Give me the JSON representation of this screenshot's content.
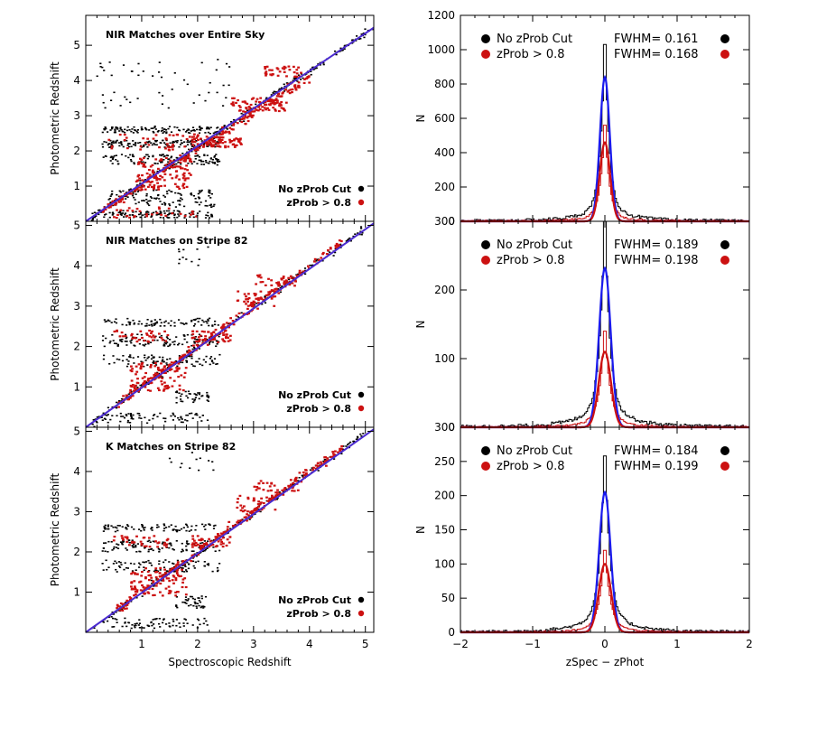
{
  "chart_data": [
    {
      "type": "scatter",
      "title": "NIR Matches over Entire Sky",
      "xlabel": "",
      "ylabel": "Photometric Redshift",
      "xlim": [
        0,
        5.15
      ],
      "ylim": [
        0,
        5.85
      ],
      "xticks": [
        "1",
        "2",
        "3",
        "4",
        "5"
      ],
      "xtick_values": [
        1,
        2,
        3,
        4,
        5
      ],
      "show_xtick_labels": false,
      "yticks": [
        "1",
        "2",
        "3",
        "4",
        "5"
      ],
      "ytick_values": [
        1,
        2,
        3,
        4,
        5
      ],
      "legend": {
        "position": "bottom-right",
        "entries": [
          {
            "label": "No zProb Cut",
            "color": "#000000"
          },
          {
            "label": "zProb > 0.8",
            "color": "#cc1111"
          }
        ]
      },
      "fit_line": {
        "from": [
          0,
          0
        ],
        "to": [
          5.15,
          5.5
        ],
        "color": "#4b2bd0"
      },
      "series": [
        {
          "name": "No zProb Cut",
          "color": "#000000",
          "clusters": [
            {
              "x": [
                0.1,
                5.15
              ],
              "y": [
                0.1,
                5.5
              ],
              "spread": 0.12,
              "n": 260,
              "diag": true
            },
            {
              "x": [
                0.3,
                2.4
              ],
              "y": [
                2.5,
                2.7
              ],
              "n": 110
            },
            {
              "x": [
                0.3,
                2.4
              ],
              "y": [
                2.1,
                2.3
              ],
              "n": 130
            },
            {
              "x": [
                0.3,
                2.4
              ],
              "y": [
                1.6,
                1.9
              ],
              "n": 120
            },
            {
              "x": [
                0.4,
                2.3
              ],
              "y": [
                0.4,
                0.9
              ],
              "n": 120
            },
            {
              "x": [
                0.3,
                2.3
              ],
              "y": [
                0.1,
                0.3
              ],
              "n": 100
            },
            {
              "x": [
                0.2,
                2.7
              ],
              "y": [
                3.2,
                4.6
              ],
              "n": 50
            }
          ]
        },
        {
          "name": "zProb > 0.8",
          "color": "#cc1111",
          "clusters": [
            {
              "x": [
                0.3,
                4.0
              ],
              "y": [
                0.3,
                4.1
              ],
              "spread": 0.15,
              "n": 220,
              "diag": true
            },
            {
              "x": [
                0.9,
                1.9
              ],
              "y": [
                0.9,
                1.8
              ],
              "n": 110
            },
            {
              "x": [
                1.9,
                2.8
              ],
              "y": [
                2.1,
                2.4
              ],
              "n": 70
            },
            {
              "x": [
                2.6,
                3.6
              ],
              "y": [
                3.1,
                3.5
              ],
              "n": 70
            },
            {
              "x": [
                3.2,
                3.9
              ],
              "y": [
                4.1,
                4.4
              ],
              "n": 35
            },
            {
              "x": [
                0.4,
                2.2
              ],
              "y": [
                2.0,
                2.5
              ],
              "n": 45
            },
            {
              "x": [
                0.5,
                2.0
              ],
              "y": [
                0.1,
                0.4
              ],
              "n": 30
            }
          ]
        }
      ]
    },
    {
      "type": "scatter",
      "title": "NIR Matches on Stripe 82",
      "xlabel": "",
      "ylabel": "Photometric Redshift",
      "xlim": [
        0,
        5.15
      ],
      "ylim": [
        0,
        5.1
      ],
      "xticks": [
        "1",
        "2",
        "3",
        "4",
        "5"
      ],
      "xtick_values": [
        1,
        2,
        3,
        4,
        5
      ],
      "show_xtick_labels": false,
      "yticks": [
        "1",
        "2",
        "3",
        "4",
        "5"
      ],
      "ytick_values": [
        1,
        2,
        3,
        4,
        5
      ],
      "legend": {
        "position": "bottom-right",
        "entries": [
          {
            "label": "No zProb Cut",
            "color": "#000000"
          },
          {
            "label": "zProb > 0.8",
            "color": "#cc1111"
          }
        ]
      },
      "fit_line": {
        "from": [
          0,
          0
        ],
        "to": [
          5.15,
          5.05
        ],
        "color": "#4b2bd0"
      },
      "series": [
        {
          "name": "No zProb Cut",
          "color": "#000000",
          "clusters": [
            {
              "x": [
                0.1,
                5.0
              ],
              "y": [
                0.1,
                4.95
              ],
              "spread": 0.1,
              "n": 220,
              "diag": true
            },
            {
              "x": [
                0.3,
                2.4
              ],
              "y": [
                2.5,
                2.7
              ],
              "n": 80
            },
            {
              "x": [
                0.3,
                2.4
              ],
              "y": [
                2.0,
                2.3
              ],
              "n": 110
            },
            {
              "x": [
                0.3,
                2.4
              ],
              "y": [
                1.5,
                1.8
              ],
              "n": 90
            },
            {
              "x": [
                1.6,
                2.2
              ],
              "y": [
                0.6,
                0.9
              ],
              "n": 40
            },
            {
              "x": [
                0.3,
                2.2
              ],
              "y": [
                0.1,
                0.35
              ],
              "n": 70
            },
            {
              "x": [
                1.5,
                2.3
              ],
              "y": [
                4.0,
                4.5
              ],
              "n": 12
            }
          ]
        },
        {
          "name": "zProb > 0.8",
          "color": "#cc1111",
          "clusters": [
            {
              "x": [
                0.5,
                4.6
              ],
              "y": [
                0.5,
                4.6
              ],
              "spread": 0.12,
              "n": 200,
              "diag": true
            },
            {
              "x": [
                0.8,
                1.8
              ],
              "y": [
                0.9,
                1.6
              ],
              "n": 100
            },
            {
              "x": [
                0.5,
                1.5
              ],
              "y": [
                2.1,
                2.4
              ],
              "n": 35
            },
            {
              "x": [
                1.9,
                2.6
              ],
              "y": [
                2.1,
                2.4
              ],
              "n": 45
            },
            {
              "x": [
                2.7,
                3.4
              ],
              "y": [
                3.0,
                3.4
              ],
              "n": 35
            },
            {
              "x": [
                3.0,
                3.8
              ],
              "y": [
                3.5,
                3.8
              ],
              "n": 30
            }
          ]
        }
      ]
    },
    {
      "type": "scatter",
      "title": "K Matches on Stripe 82",
      "xlabel": "Spectroscopic Redshift",
      "ylabel": "Photometric Redshift",
      "xlim": [
        0,
        5.15
      ],
      "ylim": [
        0,
        5.1
      ],
      "xticks": [
        "1",
        "2",
        "3",
        "4",
        "5"
      ],
      "xtick_values": [
        1,
        2,
        3,
        4,
        5
      ],
      "show_xtick_labels": true,
      "yticks": [
        "1",
        "2",
        "3",
        "4",
        "5"
      ],
      "ytick_values": [
        1,
        2,
        3,
        4,
        5
      ],
      "legend": {
        "position": "bottom-right",
        "entries": [
          {
            "label": "No zProb Cut",
            "color": "#000000"
          },
          {
            "label": "zProb > 0.8",
            "color": "#cc1111"
          }
        ]
      },
      "fit_line": {
        "from": [
          0,
          0
        ],
        "to": [
          5.15,
          5.05
        ],
        "color": "#4b2bd0"
      },
      "series": [
        {
          "name": "No zProb Cut",
          "color": "#000000",
          "clusters": [
            {
              "x": [
                0.1,
                5.0
              ],
              "y": [
                0.1,
                4.95
              ],
              "spread": 0.1,
              "n": 220,
              "diag": true
            },
            {
              "x": [
                0.3,
                2.4
              ],
              "y": [
                2.5,
                2.7
              ],
              "n": 80
            },
            {
              "x": [
                0.3,
                2.4
              ],
              "y": [
                2.0,
                2.3
              ],
              "n": 110
            },
            {
              "x": [
                0.3,
                2.4
              ],
              "y": [
                1.5,
                1.8
              ],
              "n": 90
            },
            {
              "x": [
                1.6,
                2.2
              ],
              "y": [
                0.6,
                0.9
              ],
              "n": 40
            },
            {
              "x": [
                0.3,
                2.2
              ],
              "y": [
                0.1,
                0.35
              ],
              "n": 70
            },
            {
              "x": [
                1.5,
                2.3
              ],
              "y": [
                4.0,
                4.5
              ],
              "n": 12
            }
          ]
        },
        {
          "name": "zProb > 0.8",
          "color": "#cc1111",
          "clusters": [
            {
              "x": [
                0.5,
                4.6
              ],
              "y": [
                0.5,
                4.6
              ],
              "spread": 0.12,
              "n": 200,
              "diag": true
            },
            {
              "x": [
                0.8,
                1.8
              ],
              "y": [
                0.9,
                1.6
              ],
              "n": 100
            },
            {
              "x": [
                0.5,
                1.5
              ],
              "y": [
                2.1,
                2.4
              ],
              "n": 35
            },
            {
              "x": [
                1.9,
                2.6
              ],
              "y": [
                2.1,
                2.4
              ],
              "n": 45
            },
            {
              "x": [
                2.7,
                3.4
              ],
              "y": [
                3.0,
                3.4
              ],
              "n": 35
            },
            {
              "x": [
                3.0,
                3.8
              ],
              "y": [
                3.5,
                3.8
              ],
              "n": 30
            }
          ]
        }
      ]
    },
    {
      "type": "line",
      "xlabel": "",
      "ylabel": "N",
      "xlim": [
        -2,
        2
      ],
      "ylim": [
        0,
        1200
      ],
      "xticks": [
        -2,
        -1,
        0,
        1,
        2
      ],
      "show_xtick_labels": false,
      "yticks": [
        "0",
        "200",
        "400",
        "600",
        "800",
        "1000",
        "1200"
      ],
      "ytick_values": [
        0,
        200,
        400,
        600,
        800,
        1000,
        1200
      ],
      "legend": {
        "position": "top",
        "entries": [
          {
            "label": "No zProb Cut",
            "fwhm": "FWHM= 0.161",
            "color": "#000000"
          },
          {
            "label": "zProb > 0.8",
            "fwhm": "FWHM= 0.168",
            "color": "#cc1111"
          }
        ]
      },
      "series": [
        {
          "name": "No zProb Cut",
          "style": "histogram",
          "peak": 1030,
          "center": 0.0,
          "width": 0.09,
          "tail": 0.09,
          "color": "#000000"
        },
        {
          "name": "zProb > 0.8",
          "style": "histogram",
          "peak": 560,
          "center": 0.0,
          "width": 0.095,
          "tail": 0.06,
          "color": "#cc1111"
        },
        {
          "name": "No zProb Cut fit",
          "style": "gaussian",
          "peak": 840,
          "center": 0.0,
          "sigma": 0.068,
          "color": "#1a1aee"
        },
        {
          "name": "zProb > 0.8 fit",
          "style": "gaussian",
          "peak": 460,
          "center": 0.0,
          "sigma": 0.071,
          "color": "#cc1111"
        }
      ]
    },
    {
      "type": "line",
      "xlabel": "",
      "ylabel": "N",
      "xlim": [
        -2,
        2
      ],
      "ylim": [
        0,
        300
      ],
      "xticks": [
        -2,
        -1,
        0,
        1,
        2
      ],
      "show_xtick_labels": false,
      "yticks": [
        "0",
        "100",
        "200",
        "300"
      ],
      "ytick_values": [
        0,
        100,
        200,
        300
      ],
      "legend": {
        "position": "top",
        "entries": [
          {
            "label": "No zProb Cut",
            "fwhm": "FWHM= 0.189",
            "color": "#000000"
          },
          {
            "label": "zProb > 0.8",
            "fwhm": "FWHM= 0.198",
            "color": "#cc1111"
          }
        ]
      },
      "series": [
        {
          "name": "No zProb Cut",
          "style": "histogram",
          "peak": 300,
          "center": 0.0,
          "width": 0.1,
          "tail": 0.12,
          "color": "#000000"
        },
        {
          "name": "zProb > 0.8",
          "style": "histogram",
          "peak": 140,
          "center": 0.0,
          "width": 0.11,
          "tail": 0.08,
          "color": "#cc1111"
        },
        {
          "name": "No zProb Cut fit",
          "style": "gaussian",
          "peak": 232,
          "center": 0.0,
          "sigma": 0.08,
          "color": "#1a1aee"
        },
        {
          "name": "zProb > 0.8 fit",
          "style": "gaussian",
          "peak": 110,
          "center": 0.0,
          "sigma": 0.084,
          "color": "#cc1111"
        }
      ]
    },
    {
      "type": "line",
      "xlabel": "zSpec − zPhot",
      "ylabel": "N",
      "xlim": [
        -2,
        2
      ],
      "ylim": [
        0,
        300
      ],
      "xticks": [
        -2,
        -1,
        0,
        1,
        2
      ],
      "xtick_labels": [
        "−2",
        "−1",
        "0",
        "1",
        "2"
      ],
      "show_xtick_labels": true,
      "yticks": [
        "0",
        "50",
        "100",
        "150",
        "200",
        "250",
        "300"
      ],
      "ytick_values": [
        0,
        50,
        100,
        150,
        200,
        250,
        300
      ],
      "legend": {
        "position": "top",
        "entries": [
          {
            "label": "No zProb Cut",
            "fwhm": "FWHM= 0.184",
            "color": "#000000"
          },
          {
            "label": "zProb > 0.8",
            "fwhm": "FWHM= 0.199",
            "color": "#cc1111"
          }
        ]
      },
      "series": [
        {
          "name": "No zProb Cut",
          "style": "histogram",
          "peak": 258,
          "center": 0.0,
          "width": 0.1,
          "tail": 0.12,
          "color": "#000000"
        },
        {
          "name": "zProb > 0.8",
          "style": "histogram",
          "peak": 120,
          "center": 0.0,
          "width": 0.11,
          "tail": 0.08,
          "color": "#cc1111"
        },
        {
          "name": "No zProb Cut fit",
          "style": "gaussian",
          "peak": 205,
          "center": 0.0,
          "sigma": 0.078,
          "color": "#1a1aee"
        },
        {
          "name": "zProb > 0.8 fit",
          "style": "gaussian",
          "peak": 100,
          "center": 0.0,
          "sigma": 0.084,
          "color": "#cc1111"
        }
      ]
    }
  ]
}
